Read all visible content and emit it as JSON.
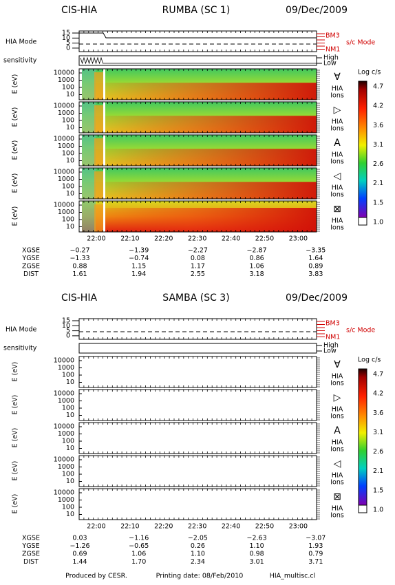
{
  "panels": [
    {
      "instrument": "CIS-HIA",
      "spacecraft": "RUMBA (SC 1)",
      "date": "09/Dec/2009",
      "mode_label": "HIA Mode",
      "mode_ticks": [
        "15",
        "10",
        "5",
        "0"
      ],
      "mode_levels": [
        "BM3",
        "NM1"
      ],
      "sc_mode": "s/c Mode",
      "sensitivity": "sensitivity",
      "sens_levels": [
        "High",
        "Low"
      ],
      "energy_axis": "E (eV)",
      "energy_ticks": [
        "10000",
        "1000",
        "100",
        "10"
      ],
      "directions": [
        {
          "symbol": "∀",
          "label_top": "HIA",
          "label_bottom": "Ions"
        },
        {
          "symbol": "▷",
          "label_top": "HIA",
          "label_bottom": "Ions"
        },
        {
          "symbol": "A",
          "label_top": "HIA",
          "label_bottom": "Ions"
        },
        {
          "symbol": "◁",
          "label_top": "HIA",
          "label_bottom": "Ions"
        },
        {
          "symbol": "⊠",
          "label_top": "HIA",
          "label_bottom": "Ions"
        }
      ],
      "colorbar": {
        "title": "Log c/s",
        "ticks": [
          "4.7",
          "4.2",
          "3.6",
          "3.1",
          "2.6",
          "2.1",
          "1.5",
          "1.0"
        ]
      },
      "times": [
        "22:00",
        "22:10",
        "22:20",
        "22:30",
        "22:40",
        "22:50",
        "23:00"
      ],
      "orbit": [
        {
          "name": "XGSE",
          "values": [
            "−0.27",
            "−1.39",
            "−2.27",
            "−2.87",
            "−3.35"
          ]
        },
        {
          "name": "YGSE",
          "values": [
            "−1.33",
            "−0.74",
            "0.08",
            "0.86",
            "1.64"
          ]
        },
        {
          "name": "ZGSE",
          "values": [
            "0.88",
            "1.15",
            "1.17",
            "1.06",
            "0.89"
          ]
        },
        {
          "name": "DIST",
          "values": [
            "1.61",
            "1.94",
            "2.55",
            "3.18",
            "3.83"
          ]
        }
      ]
    },
    {
      "instrument": "CIS-HIA",
      "spacecraft": "SAMBA (SC 3)",
      "date": "09/Dec/2009",
      "mode_label": "HIA Mode",
      "mode_ticks": [
        "15",
        "10",
        "5",
        "0"
      ],
      "mode_levels": [
        "BM3",
        "NM1"
      ],
      "sc_mode": "s/c Mode",
      "sensitivity": "sensitivity",
      "sens_levels": [
        "High",
        "Low"
      ],
      "energy_axis": "E (eV)",
      "energy_ticks": [
        "10000",
        "1000",
        "100",
        "10"
      ],
      "directions": [
        {
          "symbol": "∀",
          "label_top": "HIA",
          "label_bottom": "Ions"
        },
        {
          "symbol": "▷",
          "label_top": "HIA",
          "label_bottom": "Ions"
        },
        {
          "symbol": "A",
          "label_top": "HIA",
          "label_bottom": "Ions"
        },
        {
          "symbol": "◁",
          "label_top": "HIA",
          "label_bottom": "Ions"
        },
        {
          "symbol": "⊠",
          "label_top": "HIA",
          "label_bottom": "Ions"
        }
      ],
      "colorbar": {
        "title": "Log c/s",
        "ticks": [
          "4.7",
          "4.2",
          "3.6",
          "3.1",
          "2.6",
          "2.1",
          "1.5",
          "1.0"
        ]
      },
      "times": [
        "22:00",
        "22:10",
        "22:20",
        "22:30",
        "22:40",
        "22:50",
        "23:00"
      ],
      "orbit": [
        {
          "name": "XGSE",
          "values": [
            "0.03",
            "−1.16",
            "−2.05",
            "−2.63",
            "−3.07"
          ]
        },
        {
          "name": "YGSE",
          "values": [
            "−1.26",
            "−0.65",
            "0.26",
            "1.10",
            "1.93"
          ]
        },
        {
          "name": "ZGSE",
          "values": [
            "0.69",
            "1.06",
            "1.10",
            "0.98",
            "0.79"
          ]
        },
        {
          "name": "DIST",
          "values": [
            "1.44",
            "1.70",
            "2.34",
            "3.01",
            "3.71"
          ]
        }
      ]
    }
  ],
  "footer": {
    "producer": "Produced by CESR.",
    "printing": "Printing date: 08/Feb/2010",
    "file": "HIA_multisc.cl"
  }
}
